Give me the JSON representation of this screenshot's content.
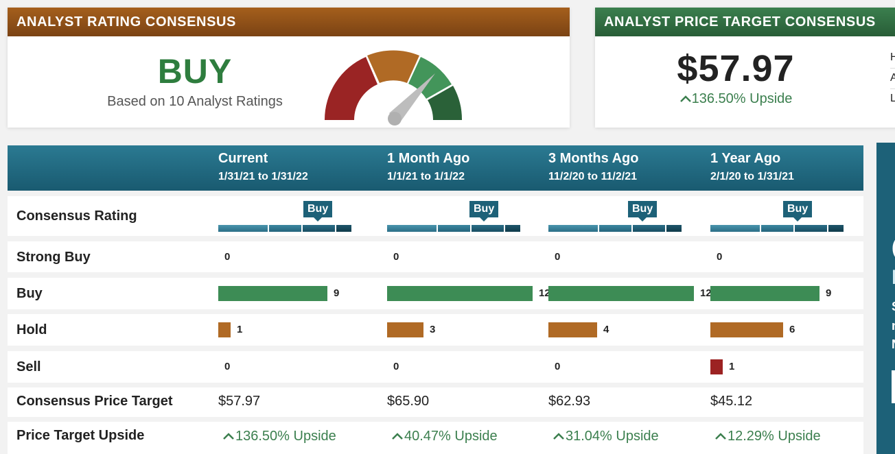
{
  "rating_card": {
    "title": "ANALYST RATING CONSENSUS",
    "rating": "BUY",
    "subtitle": "Based on 10 Analyst Ratings",
    "gauge_level": "Buy"
  },
  "target_card": {
    "title": "ANALYST PRICE TARGET CONSENSUS",
    "price": "$57.97",
    "upside": "136.50% Upside",
    "side_letters": [
      "H",
      "A",
      "L"
    ]
  },
  "side_panel": {
    "glyphs": [
      "(",
      "I",
      "S",
      "n",
      "N"
    ]
  },
  "table": {
    "periods": [
      {
        "label": "Current",
        "range": "1/31/21 to 1/31/22",
        "consensus": "Buy",
        "consensus_level": 0.74,
        "strong_buy": "0",
        "buy": "9",
        "hold": "1",
        "sell": "0",
        "price_target": "$57.97",
        "upside": "136.50% Upside"
      },
      {
        "label": "1 Month Ago",
        "range": "1/1/21 to 1/1/22",
        "consensus": "Buy",
        "consensus_level": 0.72,
        "strong_buy": "0",
        "buy": "12",
        "hold": "3",
        "sell": "0",
        "price_target": "$65.90",
        "upside": "40.47% Upside"
      },
      {
        "label": "3 Months Ago",
        "range": "11/2/20 to 11/2/21",
        "consensus": "Buy",
        "consensus_level": 0.7,
        "strong_buy": "0",
        "buy": "12",
        "hold": "4",
        "sell": "0",
        "price_target": "$62.93",
        "upside": "31.04% Upside"
      },
      {
        "label": "1 Year Ago",
        "range": "2/1/20 to 1/31/21",
        "consensus": "Buy",
        "consensus_level": 0.65,
        "strong_buy": "0",
        "buy": "9",
        "hold": "6",
        "sell": "1",
        "price_target": "$45.12",
        "upside": "12.29% Upside"
      }
    ],
    "row_labels": {
      "consensus": "Consensus Rating",
      "strong_buy": "Strong Buy",
      "buy": "Buy",
      "hold": "Hold",
      "sell": "Sell",
      "price_target": "Consensus Price Target",
      "upside": "Price Target Upside"
    }
  },
  "colors": {
    "buy": "#3d8c55",
    "hold": "#b06a25",
    "sell": "#9c2222",
    "header_teal": "#1d6178",
    "upside_green": "#3b7f4e",
    "rating_header": "#8c4e18",
    "target_header": "#2f6e42"
  },
  "icons": {
    "upside": "caret-up-icon",
    "gauge": "gauge-needle-icon"
  }
}
